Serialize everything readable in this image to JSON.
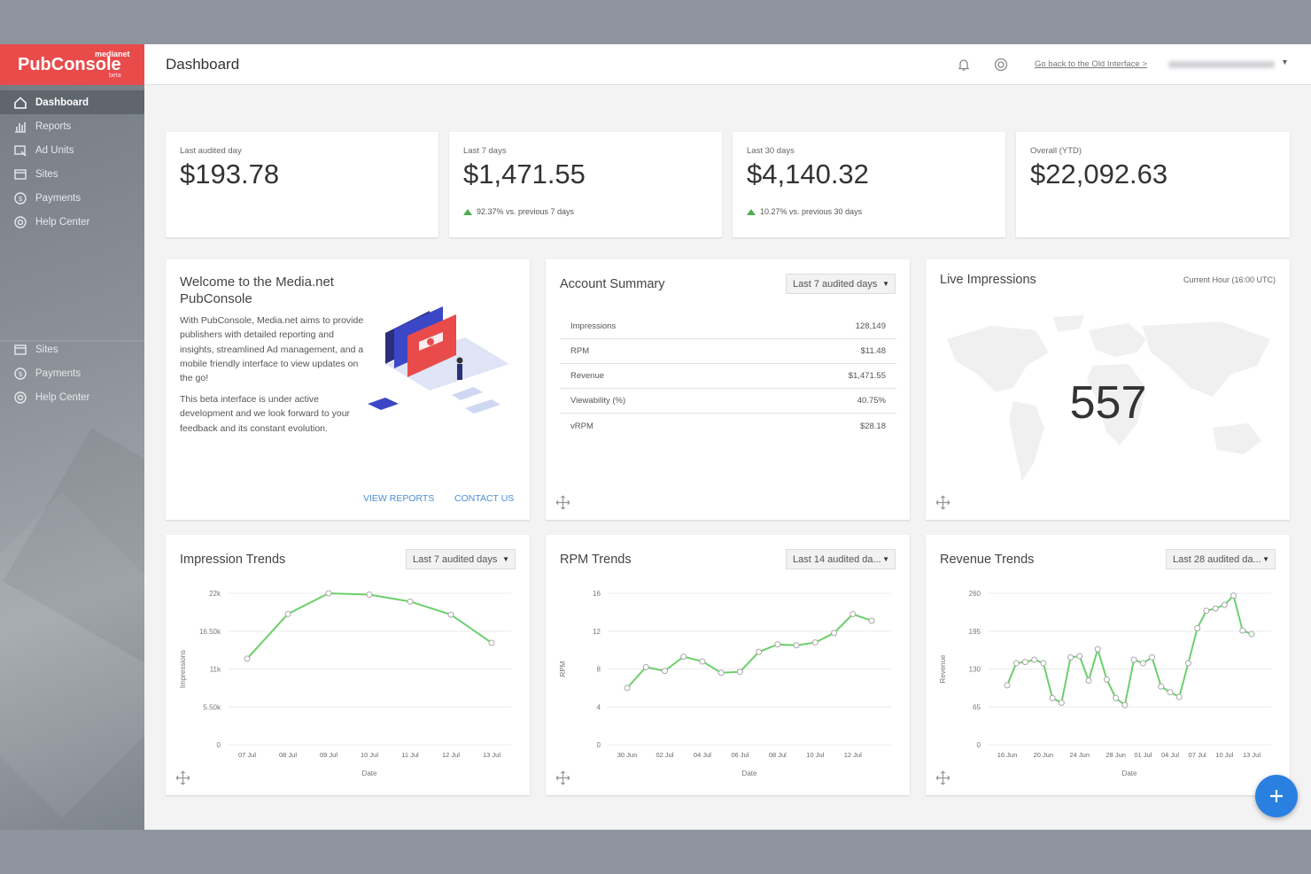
{
  "logo": {
    "small": "medianet",
    "main": "PubConsole",
    "beta": "beta"
  },
  "sidebar": {
    "items": [
      {
        "label": "Dashboard",
        "icon": "home-icon"
      },
      {
        "label": "Reports",
        "icon": "bar-chart-icon"
      },
      {
        "label": "Ad Units",
        "icon": "ad-unit-icon"
      },
      {
        "label": "Sites",
        "icon": "browser-window-icon"
      },
      {
        "label": "Payments",
        "icon": "dollar-circle-icon"
      },
      {
        "label": "Help Center",
        "icon": "lifebuoy-icon"
      }
    ],
    "items2": [
      {
        "label": "Sites",
        "icon": "browser-window-icon"
      },
      {
        "label": "Payments",
        "icon": "dollar-circle-icon"
      },
      {
        "label": "Help Center",
        "icon": "lifebuoy-icon"
      }
    ]
  },
  "header": {
    "title": "Dashboard",
    "old_link": "Go back to the Old Interface >"
  },
  "stats": [
    {
      "label": "Last audited day",
      "value": "$193.78",
      "change": ""
    },
    {
      "label": "Last 7 days",
      "value": "$1,471.55",
      "change": "92.37%  vs. previous 7 days"
    },
    {
      "label": "Last 30 days",
      "value": "$4,140.32",
      "change": "10.27%  vs. previous 30 days"
    },
    {
      "label": "Overall (YTD)",
      "value": "$22,092.63",
      "change": ""
    }
  ],
  "welcome": {
    "title": "Welcome to the Media.net PubConsole",
    "p1": "With PubConsole, Media.net aims to provide publishers with detailed reporting and insights, streamlined Ad management, and a mobile friendly interface to view updates on the go!",
    "p2": "This beta interface is under active development and we look forward to your feedback and its constant evolution.",
    "link1": "VIEW REPORTS",
    "link2": "CONTACT US"
  },
  "summary": {
    "title": "Account Summary",
    "dropdown": "Last 7 audited days",
    "rows": [
      {
        "label": "Impressions",
        "value": "128,149"
      },
      {
        "label": "RPM",
        "value": "$11.48"
      },
      {
        "label": "Revenue",
        "value": "$1,471.55"
      },
      {
        "label": "Viewability (%)",
        "value": "40.75%"
      },
      {
        "label": "vRPM",
        "value": "$28.18"
      }
    ]
  },
  "live": {
    "title": "Live Impressions",
    "subtitle": "Current Hour (16:00 UTC)",
    "value": "557"
  },
  "chart_data": [
    {
      "type": "line",
      "title": "Impression Trends",
      "dropdown": "Last 7 audited days",
      "xlabel": "Date",
      "ylabel": "Impressions",
      "ylim": [
        0,
        22000
      ],
      "yticks": [
        "0",
        "5.50k",
        "11k",
        "16.50k",
        "22k"
      ],
      "x": [
        "07 Jul",
        "08 Jul",
        "09 Jul",
        "10 Jul",
        "11 Jul",
        "12 Jul",
        "13 Jul"
      ],
      "xlabels": [
        "07 Jul",
        "08 Jul",
        "09 Jul",
        "10 Jul",
        "11 Jul",
        "12 Jul",
        "13 Jul"
      ],
      "values": [
        12500,
        19000,
        22000,
        21800,
        20800,
        18900,
        14800
      ],
      "color": "#6ccf6c"
    },
    {
      "type": "line",
      "title": "RPM Trends",
      "dropdown": "Last 14 audited da...",
      "xlabel": "Date",
      "ylabel": "RPM",
      "ylim": [
        0,
        16
      ],
      "yticks": [
        "0",
        "4",
        "8",
        "12",
        "16"
      ],
      "x": [
        "30 Jun",
        "01 Jul",
        "02 Jul",
        "03 Jul",
        "04 Jul",
        "05 Jul",
        "06 Jul",
        "07 Jul",
        "08 Jul",
        "09 Jul",
        "10 Jul",
        "11 Jul",
        "12 Jul",
        "13 Jul"
      ],
      "xlabels": [
        "30 Jun",
        "02 Jul",
        "04 Jul",
        "06 Jul",
        "08 Jul",
        "10 Jul",
        "12 Jul"
      ],
      "values": [
        6,
        8.2,
        7.8,
        9.3,
        8.8,
        7.6,
        7.7,
        9.8,
        10.6,
        10.5,
        10.8,
        11.8,
        13.8,
        13.1
      ],
      "color": "#6ccf6c"
    },
    {
      "type": "line",
      "title": "Revenue Trends",
      "dropdown": "Last 28 audited da...",
      "xlabel": "Date",
      "ylabel": "Revenue",
      "ylim": [
        0,
        260
      ],
      "yticks": [
        "0",
        "65",
        "130",
        "195",
        "260"
      ],
      "x": [
        "16 Jun",
        "17 Jun",
        "18 Jun",
        "19 Jun",
        "20 Jun",
        "21 Jun",
        "22 Jun",
        "23 Jun",
        "24 Jun",
        "25 Jun",
        "26 Jun",
        "27 Jun",
        "28 Jun",
        "29 Jun",
        "30 Jun",
        "01 Jul",
        "02 Jul",
        "03 Jul",
        "04 Jul",
        "05 Jul",
        "06 Jul",
        "07 Jul",
        "08 Jul",
        "09 Jul",
        "10 Jul",
        "11 Jul",
        "12 Jul",
        "13 Jul"
      ],
      "xlabels": [
        "16 Jun",
        "20 Jun",
        "24 Jun",
        "28 Jun",
        "01 Jul",
        "04 Jul",
        "07 Jul",
        "10 Jul",
        "13 Jul"
      ],
      "values": [
        102,
        140,
        142,
        146,
        140,
        80,
        72,
        150,
        152,
        110,
        164,
        112,
        80,
        68,
        146,
        140,
        150,
        100,
        90,
        82,
        140,
        200,
        230,
        234,
        240,
        256,
        196,
        190
      ],
      "color": "#6ccf6c"
    }
  ]
}
